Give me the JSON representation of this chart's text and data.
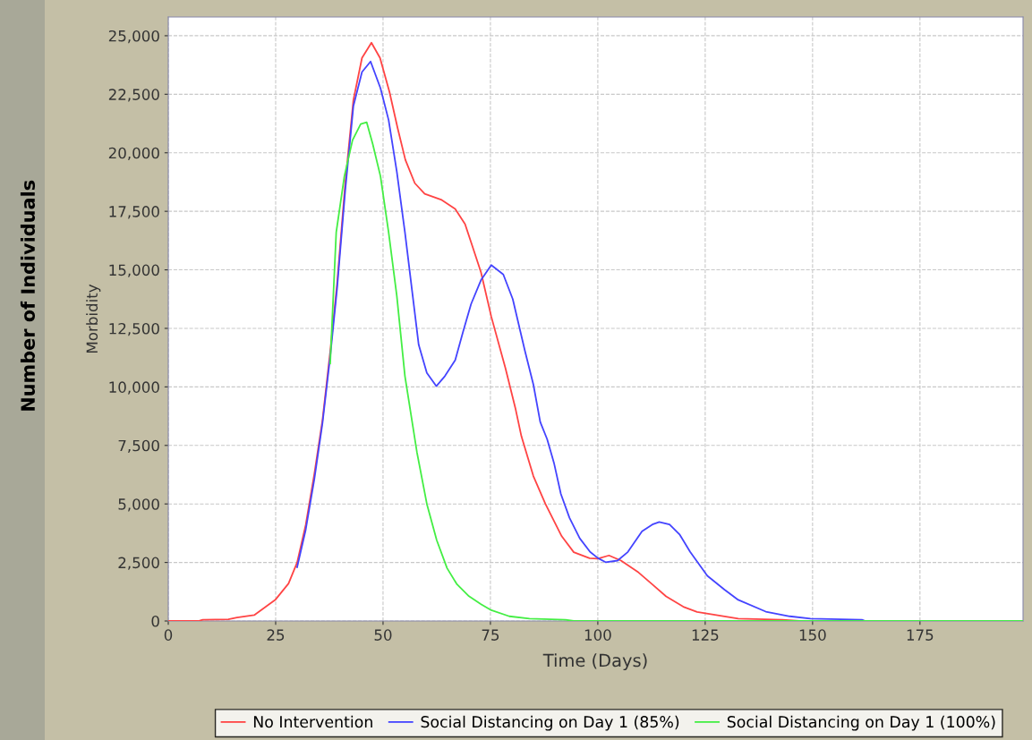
{
  "chart_data": {
    "type": "line",
    "xlabel": "Time (Days)",
    "ylabel": "Morbidity",
    "annotations": [
      "Number of Individuals"
    ],
    "xlim": [
      0,
      199
    ],
    "ylim": [
      0,
      25800
    ],
    "xticks": [
      0,
      25,
      50,
      75,
      100,
      125,
      150,
      175
    ],
    "yticks": [
      0,
      {
        "value": 2500,
        "label": "2,500"
      },
      {
        "value": 5000,
        "label": "5,000"
      },
      {
        "value": 7500,
        "label": "7,500"
      },
      {
        "value": 10000,
        "label": "10,000"
      },
      {
        "value": 12500,
        "label": "12,500"
      },
      {
        "value": 15000,
        "label": "15,000"
      },
      {
        "value": 17500,
        "label": "17,500"
      },
      {
        "value": 20000,
        "label": "20,000"
      },
      {
        "value": 22500,
        "label": "22,500"
      },
      {
        "value": 25000,
        "label": "25,000"
      }
    ],
    "grid": true,
    "legend": "bottom",
    "marker": "none",
    "line_style": "solid",
    "series": [
      {
        "name": "No Intervention",
        "color": "#ff4444",
        "x": [
          0,
          7,
          8,
          14,
          16,
          20,
          25,
          28,
          30,
          32,
          34,
          35.9,
          37.7,
          39.3,
          41.2,
          43.1,
          45.1,
          47.3,
          49.3,
          51.5,
          53.4,
          55.2,
          57.4,
          59.7,
          63.5,
          66.8,
          69.1,
          71,
          72.8,
          75.2,
          78.5,
          80.8,
          82.2,
          85,
          87.8,
          91.6,
          94.4,
          98.1,
          100,
          102.6,
          105.4,
          109.5,
          112.7,
          115.9,
          119.9,
          123.1,
          129.5,
          132.7,
          143,
          147,
          199
        ],
        "values": [
          0,
          0,
          50,
          70,
          150,
          250,
          920,
          1600,
          2500,
          4100,
          6270,
          8580,
          11500,
          14400,
          18700,
          22250,
          24050,
          24700,
          24050,
          22600,
          21050,
          19700,
          18700,
          18250,
          18000,
          17600,
          16950,
          15900,
          14900,
          13000,
          10800,
          9100,
          7900,
          6190,
          5000,
          3620,
          2940,
          2680,
          2660,
          2800,
          2580,
          2070,
          1560,
          1050,
          610,
          390,
          200,
          100,
          50,
          0,
          0
        ]
      },
      {
        "name": "Social Distancing on Day 1 (85%)",
        "color": "#4444ff",
        "x": [
          30,
          32,
          34,
          35.9,
          37.7,
          39.3,
          41.2,
          43.1,
          45.1,
          47.1,
          49.4,
          51.3,
          53.2,
          55.1,
          56.9,
          58.3,
          60.2,
          62.4,
          64.4,
          66.8,
          68.6,
          70.5,
          72.8,
          75.2,
          78,
          80.2,
          83,
          85,
          86.6,
          88.2,
          89.8,
          91.4,
          93.4,
          95.8,
          98.2,
          100,
          101.8,
          104.6,
          107,
          110.3,
          112.7,
          114.3,
          116.7,
          119.1,
          121.5,
          125.5,
          129.5,
          132.7,
          139.1,
          144.7,
          149.5,
          161.5,
          162.3,
          199
        ],
        "values": [
          2300,
          3900,
          6050,
          8450,
          11300,
          14200,
          18400,
          22000,
          23450,
          23900,
          22760,
          21400,
          19200,
          16600,
          13900,
          11800,
          10600,
          10030,
          10460,
          11140,
          12340,
          13540,
          14560,
          15200,
          14800,
          13750,
          11560,
          10100,
          8500,
          7770,
          6750,
          5430,
          4410,
          3530,
          2950,
          2690,
          2510,
          2580,
          2950,
          3830,
          4120,
          4230,
          4120,
          3680,
          2950,
          1930,
          1340,
          900,
          400,
          200,
          100,
          50,
          0,
          0
        ]
      },
      {
        "name": "Social Distancing on Day 1 (100%)",
        "color": "#44ee44",
        "x": [
          37.7,
          39.1,
          41,
          42.9,
          44.8,
          46.2,
          47.6,
          49.4,
          51.3,
          53.2,
          55.1,
          57.9,
          60.2,
          62.5,
          64.9,
          67.2,
          70,
          72.8,
          75.2,
          79.4,
          84.1,
          92.5,
          94.4,
          199
        ],
        "values": [
          11000,
          16600,
          19000,
          20540,
          21230,
          21300,
          20370,
          19000,
          16600,
          13900,
          10460,
          7200,
          5000,
          3450,
          2260,
          1570,
          1060,
          720,
          460,
          200,
          100,
          50,
          0,
          0
        ]
      }
    ]
  }
}
